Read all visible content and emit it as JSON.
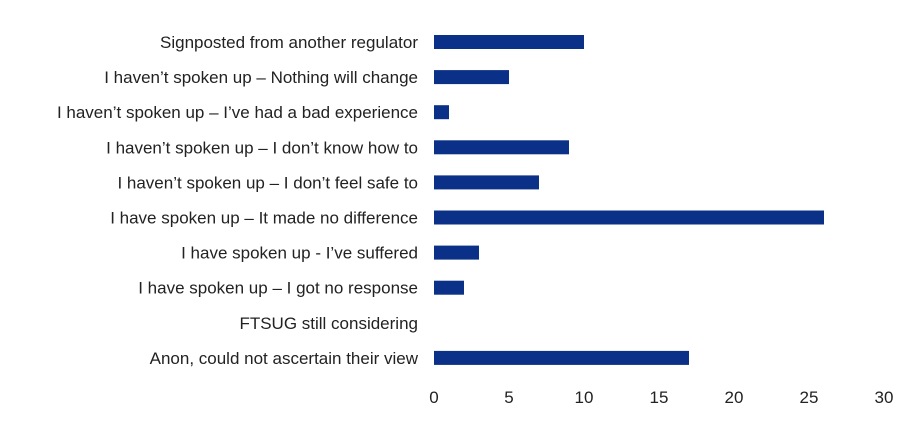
{
  "chart_data": {
    "type": "bar",
    "orientation": "horizontal",
    "title": "",
    "xlabel": "",
    "ylabel": "",
    "categories": [
      "Signposted from another regulator",
      "I haven’t spoken up – Nothing will change",
      "I haven’t spoken up – I’ve had a bad experience",
      "I haven’t spoken up – I don’t know how to",
      "I haven’t spoken up – I don’t feel safe to",
      "I have spoken up  – It made no difference",
      "I have spoken up  - I’ve suffered",
      "I have spoken up – I got no response",
      "FTSUG still considering",
      "Anon, could not ascertain their view"
    ],
    "values": [
      10,
      5,
      1,
      9,
      7,
      26,
      3,
      2,
      0,
      17
    ],
    "xlim": [
      0,
      30
    ],
    "xticks": [
      "0",
      "5",
      "10",
      "15",
      "20",
      "25",
      "30"
    ],
    "bar_color": "#0b3087",
    "grid": false,
    "legend": "none"
  }
}
